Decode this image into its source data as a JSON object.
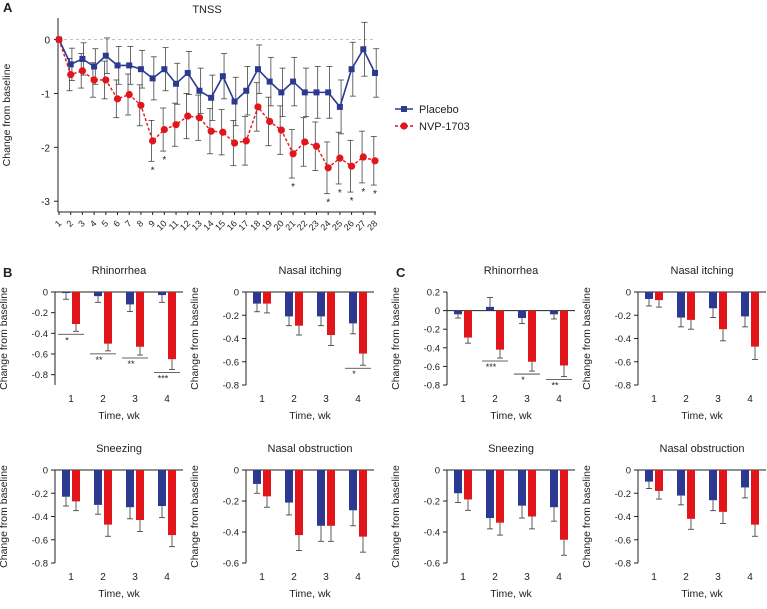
{
  "colors": {
    "placebo": "#2b3990",
    "nvp": "#e2151b",
    "axis": "#222222",
    "zero_line": "#bbbbbb"
  },
  "panel_labels": {
    "a": "A",
    "b": "B",
    "c": "C"
  },
  "chart_data": [
    {
      "id": "tnss",
      "type": "line",
      "title": "TNSS",
      "xlabel": "",
      "ylabel": "Change from baseline",
      "x": [
        1,
        2,
        3,
        4,
        5,
        6,
        7,
        8,
        9,
        10,
        11,
        12,
        13,
        14,
        15,
        16,
        17,
        18,
        19,
        20,
        21,
        22,
        23,
        24,
        25,
        26,
        27,
        28
      ],
      "ylim": [
        -3.2,
        0.4
      ],
      "yticks": [
        0,
        -1,
        -2,
        -3
      ],
      "series": [
        {
          "name": "Placebo",
          "values": [
            0,
            -0.46,
            -0.36,
            -0.5,
            -0.3,
            -0.48,
            -0.48,
            -0.55,
            -0.72,
            -0.55,
            -0.82,
            -0.62,
            -0.95,
            -1.08,
            -0.68,
            -1.15,
            -0.95,
            -0.55,
            -0.78,
            -0.98,
            -0.78,
            -0.98,
            -0.98,
            -0.98,
            -1.25,
            -0.55,
            -0.18,
            -0.62
          ],
          "errors": [
            0,
            0.3,
            0.3,
            0.33,
            0.33,
            0.35,
            0.35,
            0.35,
            0.4,
            0.4,
            0.38,
            0.4,
            0.42,
            0.42,
            0.42,
            0.45,
            0.45,
            0.45,
            0.45,
            0.45,
            0.45,
            0.45,
            0.48,
            0.48,
            0.5,
            0.5,
            0.5,
            0.45
          ]
        },
        {
          "name": "NVP-1703",
          "values": [
            0,
            -0.65,
            -0.58,
            -0.75,
            -0.75,
            -1.1,
            -1.02,
            -1.22,
            -1.88,
            -1.67,
            -1.58,
            -1.42,
            -1.45,
            -1.7,
            -1.72,
            -1.92,
            -1.88,
            -1.25,
            -1.52,
            -1.68,
            -2.12,
            -1.9,
            -1.98,
            -2.38,
            -2.2,
            -2.35,
            -2.18,
            -2.25
          ],
          "errors": [
            0,
            0.3,
            0.32,
            0.32,
            0.35,
            0.35,
            0.38,
            0.38,
            0.38,
            0.4,
            0.4,
            0.42,
            0.42,
            0.42,
            0.42,
            0.42,
            0.45,
            0.45,
            0.45,
            0.45,
            0.45,
            0.45,
            0.45,
            0.48,
            0.48,
            0.48,
            0.48,
            0.45
          ]
        }
      ],
      "significance": [
        {
          "x": 9,
          "label": "*"
        },
        {
          "x": 10,
          "label": "*"
        },
        {
          "x": 21,
          "label": "*"
        },
        {
          "x": 24,
          "label": "*"
        },
        {
          "x": 25,
          "label": "*"
        },
        {
          "x": 26,
          "label": "*"
        },
        {
          "x": 27,
          "label": "*"
        },
        {
          "x": 28,
          "label": "*"
        }
      ],
      "legend": {
        "placement": "right",
        "entries": [
          "Placebo",
          "NVP-1703"
        ]
      }
    },
    {
      "id": "b-rhinorrhea",
      "type": "bar",
      "title": "Rhinorrhea",
      "xlabel": "Time, wk",
      "ylabel": "Change from baseline",
      "categories": [
        "1",
        "2",
        "3",
        "4"
      ],
      "ylim": [
        -0.9,
        0
      ],
      "yticks": [
        0,
        -0.2,
        -0.4,
        -0.6,
        -0.8
      ],
      "series": [
        {
          "name": "Placebo",
          "values": [
            -0.01,
            -0.04,
            -0.12,
            -0.03
          ],
          "errors": [
            0.06,
            0.06,
            0.07,
            0.07
          ]
        },
        {
          "name": "NVP-1703",
          "values": [
            -0.31,
            -0.5,
            -0.53,
            -0.65
          ],
          "errors": [
            0.07,
            0.07,
            0.08,
            0.1
          ]
        }
      ],
      "significance": [
        {
          "category": "1",
          "label": "*"
        },
        {
          "category": "2",
          "label": "**"
        },
        {
          "category": "3",
          "label": "**"
        },
        {
          "category": "4",
          "label": "***"
        }
      ]
    },
    {
      "id": "b-nasal-itching",
      "type": "bar",
      "title": "Nasal itching",
      "xlabel": "Time, wk",
      "ylabel": "Change from baseline",
      "categories": [
        "1",
        "2",
        "3",
        "4"
      ],
      "ylim": [
        -0.8,
        0
      ],
      "yticks": [
        0,
        -0.2,
        -0.4,
        -0.6,
        -0.8
      ],
      "series": [
        {
          "name": "Placebo",
          "values": [
            -0.1,
            -0.21,
            -0.21,
            -0.27
          ],
          "errors": [
            0.07,
            0.08,
            0.08,
            0.09
          ]
        },
        {
          "name": "NVP-1703",
          "values": [
            -0.1,
            -0.29,
            -0.37,
            -0.53
          ],
          "errors": [
            0.08,
            0.08,
            0.09,
            0.1
          ]
        }
      ],
      "significance": [
        {
          "category": "4",
          "label": "*"
        }
      ]
    },
    {
      "id": "b-sneezing",
      "type": "bar",
      "title": "Sneezing",
      "xlabel": "Time, wk",
      "ylabel": "Change from baseline",
      "categories": [
        "1",
        "2",
        "3",
        "4"
      ],
      "ylim": [
        -0.8,
        0
      ],
      "yticks": [
        0,
        -0.2,
        -0.4,
        -0.6,
        -0.8
      ],
      "series": [
        {
          "name": "Placebo",
          "values": [
            -0.23,
            -0.3,
            -0.32,
            -0.31
          ],
          "errors": [
            0.08,
            0.08,
            0.1,
            0.1
          ]
        },
        {
          "name": "NVP-1703",
          "values": [
            -0.27,
            -0.47,
            -0.43,
            -0.56
          ],
          "errors": [
            0.08,
            0.1,
            0.1,
            0.1
          ]
        }
      ],
      "significance": []
    },
    {
      "id": "b-nasal-obstruction",
      "type": "bar",
      "title": "Nasal obstruction",
      "xlabel": "Time, wk",
      "ylabel": "Change from baseline",
      "categories": [
        "1",
        "2",
        "3",
        "4"
      ],
      "ylim": [
        -0.6,
        0
      ],
      "yticks": [
        0,
        -0.2,
        -0.4,
        -0.6
      ],
      "series": [
        {
          "name": "Placebo",
          "values": [
            -0.09,
            -0.21,
            -0.36,
            -0.26
          ],
          "errors": [
            0.06,
            0.08,
            0.1,
            0.1
          ]
        },
        {
          "name": "NVP-1703",
          "values": [
            -0.17,
            -0.42,
            -0.36,
            -0.43
          ],
          "errors": [
            0.07,
            0.1,
            0.1,
            0.1
          ]
        }
      ],
      "significance": []
    },
    {
      "id": "c-rhinorrhea",
      "type": "bar",
      "title": "Rhinorrhea",
      "xlabel": "Time, wk",
      "ylabel": "Change from baseline",
      "categories": [
        "1",
        "2",
        "3",
        "4"
      ],
      "ylim": [
        -0.8,
        0.2
      ],
      "yticks": [
        0.2,
        0,
        -0.2,
        -0.4,
        -0.6,
        -0.8
      ],
      "series": [
        {
          "name": "Placebo",
          "values": [
            -0.04,
            0.04,
            -0.08,
            -0.04
          ],
          "errors": [
            0.04,
            0.1,
            0.06,
            0.05
          ]
        },
        {
          "name": "NVP-1703",
          "values": [
            -0.29,
            -0.42,
            -0.55,
            -0.59
          ],
          "errors": [
            0.06,
            0.09,
            0.1,
            0.12
          ]
        }
      ],
      "significance": [
        {
          "category": "2",
          "label": "***"
        },
        {
          "category": "3",
          "label": "*"
        },
        {
          "category": "4",
          "label": "**"
        }
      ]
    },
    {
      "id": "c-nasal-itching",
      "type": "bar",
      "title": "Nasal itching",
      "xlabel": "Time, wk",
      "ylabel": "Change from baseline",
      "categories": [
        "1",
        "2",
        "3",
        "4"
      ],
      "ylim": [
        -0.8,
        0
      ],
      "yticks": [
        0,
        -0.2,
        -0.4,
        -0.6,
        -0.8
      ],
      "series": [
        {
          "name": "Placebo",
          "values": [
            -0.06,
            -0.22,
            -0.14,
            -0.21
          ],
          "errors": [
            0.06,
            0.08,
            0.08,
            0.09
          ]
        },
        {
          "name": "NVP-1703",
          "values": [
            -0.07,
            -0.24,
            -0.32,
            -0.47
          ],
          "errors": [
            0.06,
            0.08,
            0.1,
            0.11
          ]
        }
      ],
      "significance": []
    },
    {
      "id": "c-sneezing",
      "type": "bar",
      "title": "Sneezing",
      "xlabel": "Time, wk",
      "ylabel": "Change from baseline",
      "categories": [
        "1",
        "2",
        "3",
        "4"
      ],
      "ylim": [
        -0.6,
        0
      ],
      "yticks": [
        0,
        -0.2,
        -0.4,
        -0.6
      ],
      "series": [
        {
          "name": "Placebo",
          "values": [
            -0.15,
            -0.31,
            -0.23,
            -0.24
          ],
          "errors": [
            0.06,
            0.07,
            0.08,
            0.09
          ]
        },
        {
          "name": "NVP-1703",
          "values": [
            -0.19,
            -0.34,
            -0.3,
            -0.45
          ],
          "errors": [
            0.07,
            0.08,
            0.08,
            0.1
          ]
        }
      ],
      "significance": []
    },
    {
      "id": "c-nasal-obstruction",
      "type": "bar",
      "title": "Nasal obstruction",
      "xlabel": "Time, wk",
      "ylabel": "Change from baseline",
      "categories": [
        "1",
        "2",
        "3",
        "4"
      ],
      "ylim": [
        -0.8,
        0
      ],
      "yticks": [
        0,
        -0.2,
        -0.4,
        -0.6,
        -0.8
      ],
      "series": [
        {
          "name": "Placebo",
          "values": [
            -0.1,
            -0.22,
            -0.26,
            -0.15
          ],
          "errors": [
            0.06,
            0.08,
            0.09,
            0.09
          ]
        },
        {
          "name": "NVP-1703",
          "values": [
            -0.18,
            -0.42,
            -0.36,
            -0.47
          ],
          "errors": [
            0.07,
            0.09,
            0.1,
            0.1
          ]
        }
      ],
      "significance": []
    }
  ]
}
